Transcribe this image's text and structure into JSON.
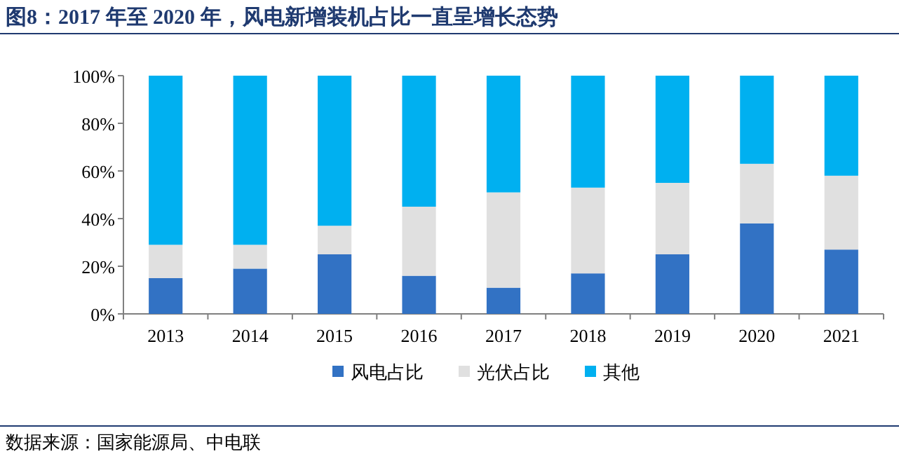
{
  "chart_data": {
    "type": "bar",
    "stacked": true,
    "title": "图8：2017 年至 2020 年，风电新增装机占比一直呈增长态势",
    "categories": [
      "2013",
      "2014",
      "2015",
      "2016",
      "2017",
      "2018",
      "2019",
      "2020",
      "2021"
    ],
    "series": [
      {
        "name": "风电占比",
        "color": "#3272c4",
        "values": [
          15,
          19,
          25,
          16,
          11,
          17,
          25,
          38,
          27
        ]
      },
      {
        "name": "光伏占比",
        "color": "#e0e0e0",
        "values": [
          14,
          10,
          12,
          29,
          40,
          36,
          30,
          25,
          31
        ]
      },
      {
        "name": "其他",
        "color": "#00b0f0",
        "values": [
          71,
          71,
          63,
          55,
          49,
          47,
          45,
          37,
          42
        ]
      }
    ],
    "ylim": [
      0,
      100
    ],
    "yticks": [
      {
        "value": 0,
        "label": "0%"
      },
      {
        "value": 20,
        "label": "20%"
      },
      {
        "value": 40,
        "label": "40%"
      },
      {
        "value": 60,
        "label": "60%"
      },
      {
        "value": 80,
        "label": "80%"
      },
      {
        "value": 100,
        "label": "100%"
      }
    ],
    "grid": false,
    "legend": "bottom",
    "annotations": [
      "数据来源：国家能源局、中电联"
    ]
  }
}
